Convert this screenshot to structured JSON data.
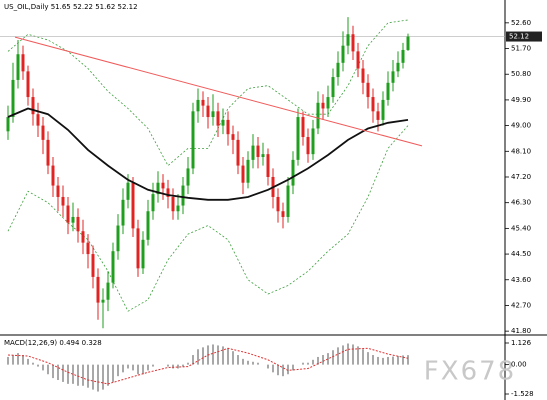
{
  "watermark": "FX678",
  "chart_data": [
    {
      "type": "candlestick",
      "title": "US_OIL,Daily 51.65 52.22 51.62 52.12",
      "up_color": "#1f9e1f",
      "down_color": "#e02424",
      "xlim": [
        -1.6,
        99.4
      ],
      "ylim": [
        41.7,
        53.4
      ],
      "yticks": [
        {
          "value": 52.6,
          "label": "52.60"
        },
        {
          "value": 51.7,
          "label": "51.70"
        },
        {
          "value": 50.8,
          "label": "50.80"
        },
        {
          "value": 49.9,
          "label": "49.90"
        },
        {
          "value": 49.0,
          "label": "49.00"
        },
        {
          "value": 48.1,
          "label": "48.10"
        },
        {
          "value": 47.2,
          "label": "47.20"
        },
        {
          "value": 46.3,
          "label": "46.30"
        },
        {
          "value": 45.4,
          "label": "45.40"
        },
        {
          "value": 44.5,
          "label": "44.50"
        },
        {
          "value": 43.6,
          "label": "43.60"
        },
        {
          "value": 42.7,
          "label": "42.70"
        },
        {
          "value": 41.8,
          "label": "41.80"
        }
      ],
      "open": [
        48.8,
        49.3,
        50.6,
        51.5,
        50.9,
        50.0,
        49.4,
        49.0,
        48.5,
        47.6,
        46.9,
        46.5,
        46.2,
        45.6,
        45.8,
        45.3,
        44.9,
        44.5,
        43.7,
        42.8,
        42.9,
        43.5,
        44.6,
        45.5,
        46.4,
        47.0,
        45.4,
        44.0,
        45.0,
        46.0,
        46.6,
        47.0,
        46.8,
        46.5,
        46.0,
        46.2,
        46.9,
        47.5,
        49.5,
        49.9,
        49.7,
        49.3,
        49.5,
        49.0,
        49.2,
        48.7,
        48.5,
        47.6,
        47.0,
        47.8,
        48.3,
        47.9,
        48.0,
        47.2,
        46.5,
        46.0,
        45.8,
        46.9,
        47.8,
        49.3,
        48.6,
        48.0,
        48.9,
        49.8,
        49.6,
        50.0,
        50.7,
        51.2,
        51.8,
        52.2,
        51.6,
        51.0,
        50.5,
        50.0,
        49.5,
        49.2,
        49.9,
        50.5,
        50.9,
        51.2,
        51.65
      ],
      "high": [
        49.7,
        51.2,
        52.0,
        51.8,
        51.1,
        50.3,
        49.8,
        49.3,
        48.8,
        47.9,
        47.2,
        46.9,
        46.5,
        46.3,
        46.1,
        45.7,
        45.2,
        44.8,
        44.0,
        43.3,
        43.9,
        44.9,
        45.9,
        46.8,
        47.3,
        47.2,
        45.7,
        45.3,
        46.4,
        47.0,
        47.4,
        47.3,
        47.1,
        46.8,
        46.6,
        47.2,
        47.9,
        49.8,
        50.3,
        50.2,
        50.0,
        50.1,
        49.8,
        49.6,
        49.5,
        49.0,
        48.8,
        47.9,
        48.1,
        48.7,
        48.6,
        48.4,
        48.2,
        47.5,
        46.8,
        46.3,
        47.2,
        48.1,
        49.6,
        49.5,
        48.9,
        49.2,
        50.2,
        50.1,
        50.4,
        51.0,
        51.6,
        52.3,
        52.8,
        52.5,
        51.9,
        51.3,
        50.8,
        50.3,
        49.8,
        50.2,
        50.9,
        51.3,
        51.6,
        51.9,
        52.22
      ],
      "low": [
        48.5,
        49.1,
        50.3,
        50.6,
        49.7,
        49.0,
        48.6,
        48.0,
        47.3,
        46.5,
        46.0,
        45.8,
        45.2,
        45.3,
        44.9,
        44.5,
        44.0,
        43.3,
        42.2,
        41.9,
        42.5,
        43.3,
        44.3,
        45.2,
        46.1,
        45.1,
        43.7,
        43.8,
        44.8,
        45.7,
        46.3,
        46.4,
        46.1,
        45.7,
        45.7,
        45.9,
        46.6,
        47.3,
        49.1,
        49.3,
        48.9,
        49.0,
        48.6,
        48.7,
        48.3,
        48.0,
        47.3,
        46.6,
        46.8,
        47.5,
        47.5,
        47.6,
        46.9,
        46.1,
        45.6,
        45.4,
        45.6,
        46.6,
        47.6,
        48.3,
        47.7,
        47.8,
        48.7,
        49.2,
        49.3,
        49.8,
        50.4,
        50.9,
        51.5,
        51.3,
        50.7,
        50.1,
        49.6,
        49.1,
        48.8,
        49.0,
        49.7,
        50.2,
        50.7,
        51.0,
        51.62
      ],
      "close": [
        49.3,
        50.6,
        51.5,
        50.9,
        50.0,
        49.4,
        49.0,
        48.5,
        47.6,
        46.9,
        46.5,
        46.2,
        45.6,
        45.8,
        45.3,
        44.9,
        44.5,
        43.7,
        42.8,
        42.9,
        43.5,
        44.6,
        45.5,
        46.4,
        47.0,
        45.4,
        44.0,
        45.0,
        46.0,
        46.6,
        47.0,
        46.8,
        46.5,
        46.0,
        46.2,
        46.9,
        47.5,
        49.5,
        49.9,
        49.7,
        49.3,
        49.5,
        49.0,
        49.2,
        48.7,
        48.5,
        47.6,
        47.0,
        47.8,
        48.3,
        47.9,
        48.0,
        47.2,
        46.5,
        46.0,
        45.8,
        46.9,
        47.8,
        49.3,
        48.6,
        48.0,
        48.9,
        49.8,
        49.6,
        50.0,
        50.7,
        51.2,
        51.8,
        52.2,
        51.6,
        51.0,
        50.5,
        50.0,
        49.5,
        49.2,
        49.9,
        50.5,
        50.9,
        51.2,
        51.65,
        52.12
      ],
      "ma": {
        "color": "#111111",
        "x": [
          0,
          4,
          8,
          12,
          16,
          20,
          24,
          28,
          32,
          36,
          40,
          44,
          48,
          52,
          56,
          60,
          64,
          68,
          72,
          76,
          80
        ],
        "values": [
          49.3,
          49.6,
          49.4,
          48.85,
          48.15,
          47.6,
          47.1,
          46.75,
          46.57,
          46.47,
          46.4,
          46.4,
          46.5,
          46.75,
          47.1,
          47.5,
          47.97,
          48.5,
          48.9,
          49.1,
          49.2
        ]
      },
      "bands": {
        "color": "#3c9e3c",
        "x": [
          0,
          4,
          8,
          12,
          16,
          20,
          24,
          28,
          32,
          36,
          40,
          44,
          48,
          52,
          56,
          60,
          64,
          68,
          72,
          76,
          80
        ],
        "upper": [
          51.6,
          52.2,
          52.0,
          51.6,
          51.0,
          50.2,
          49.6,
          48.9,
          47.6,
          48.2,
          48.2,
          49.6,
          50.3,
          50.4,
          49.9,
          49.4,
          49.4,
          50.4,
          51.8,
          52.6,
          52.7
        ],
        "lower": [
          45.3,
          46.7,
          46.3,
          45.6,
          45.0,
          43.9,
          42.5,
          42.9,
          44.3,
          45.2,
          45.5,
          45.0,
          43.6,
          43.1,
          43.4,
          43.9,
          44.6,
          45.2,
          46.5,
          48.2,
          49.0
        ]
      },
      "trendline": {
        "color": "#f05a5a",
        "x": [
          1.4,
          82.8
        ],
        "values": [
          52.1,
          48.29
        ]
      },
      "last_price": {
        "value": 52.12,
        "label": "52.12"
      }
    },
    {
      "type": "macd",
      "title": "MACD(12,26,9) 0.494 0.328",
      "xlim": [
        -1.6,
        99.4
      ],
      "ylim": [
        -1.84,
        1.49
      ],
      "yticks": [
        {
          "value": 1.126,
          "label": "1.126"
        },
        {
          "value": 0,
          "label": "0.00"
        },
        {
          "value": -1.528,
          "label": "-1.528"
        }
      ],
      "histogram_color": "#a8a8a8",
      "histogram": [
        0.4,
        0.5,
        0.6,
        0.5,
        0.3,
        0.1,
        -0.1,
        -0.3,
        -0.5,
        -0.7,
        -0.8,
        -0.9,
        -1.0,
        -1.0,
        -1.1,
        -1.1,
        -1.2,
        -1.3,
        -1.4,
        -1.3,
        -1.1,
        -0.9,
        -0.6,
        -0.4,
        -0.2,
        -0.3,
        -0.5,
        -0.5,
        -0.3,
        -0.1,
        0.0,
        0.0,
        -0.1,
        -0.2,
        -0.2,
        -0.1,
        0.1,
        0.5,
        0.8,
        0.9,
        1.0,
        1.05,
        1.0,
        0.95,
        0.85,
        0.7,
        0.5,
        0.3,
        0.2,
        0.15,
        0.1,
        0.0,
        -0.2,
        -0.4,
        -0.55,
        -0.6,
        -0.5,
        -0.3,
        0.0,
        0.1,
        0.1,
        0.25,
        0.4,
        0.5,
        0.6,
        0.75,
        0.9,
        1.0,
        1.1,
        1.05,
        0.95,
        0.8,
        0.65,
        0.5,
        0.4,
        0.35,
        0.4,
        0.42,
        0.45,
        0.48,
        0.494
      ],
      "signal": {
        "color": "#e03030",
        "x": [
          0,
          4,
          8,
          12,
          16,
          20,
          24,
          28,
          32,
          36,
          40,
          44,
          48,
          52,
          56,
          60,
          64,
          68,
          72,
          76,
          80
        ],
        "values": [
          0.5,
          0.45,
          0.1,
          -0.4,
          -0.8,
          -1.0,
          -0.7,
          -0.4,
          -0.15,
          -0.1,
          0.5,
          0.85,
          0.6,
          0.25,
          -0.3,
          -0.2,
          0.3,
          0.8,
          0.85,
          0.55,
          0.328
        ]
      }
    }
  ]
}
